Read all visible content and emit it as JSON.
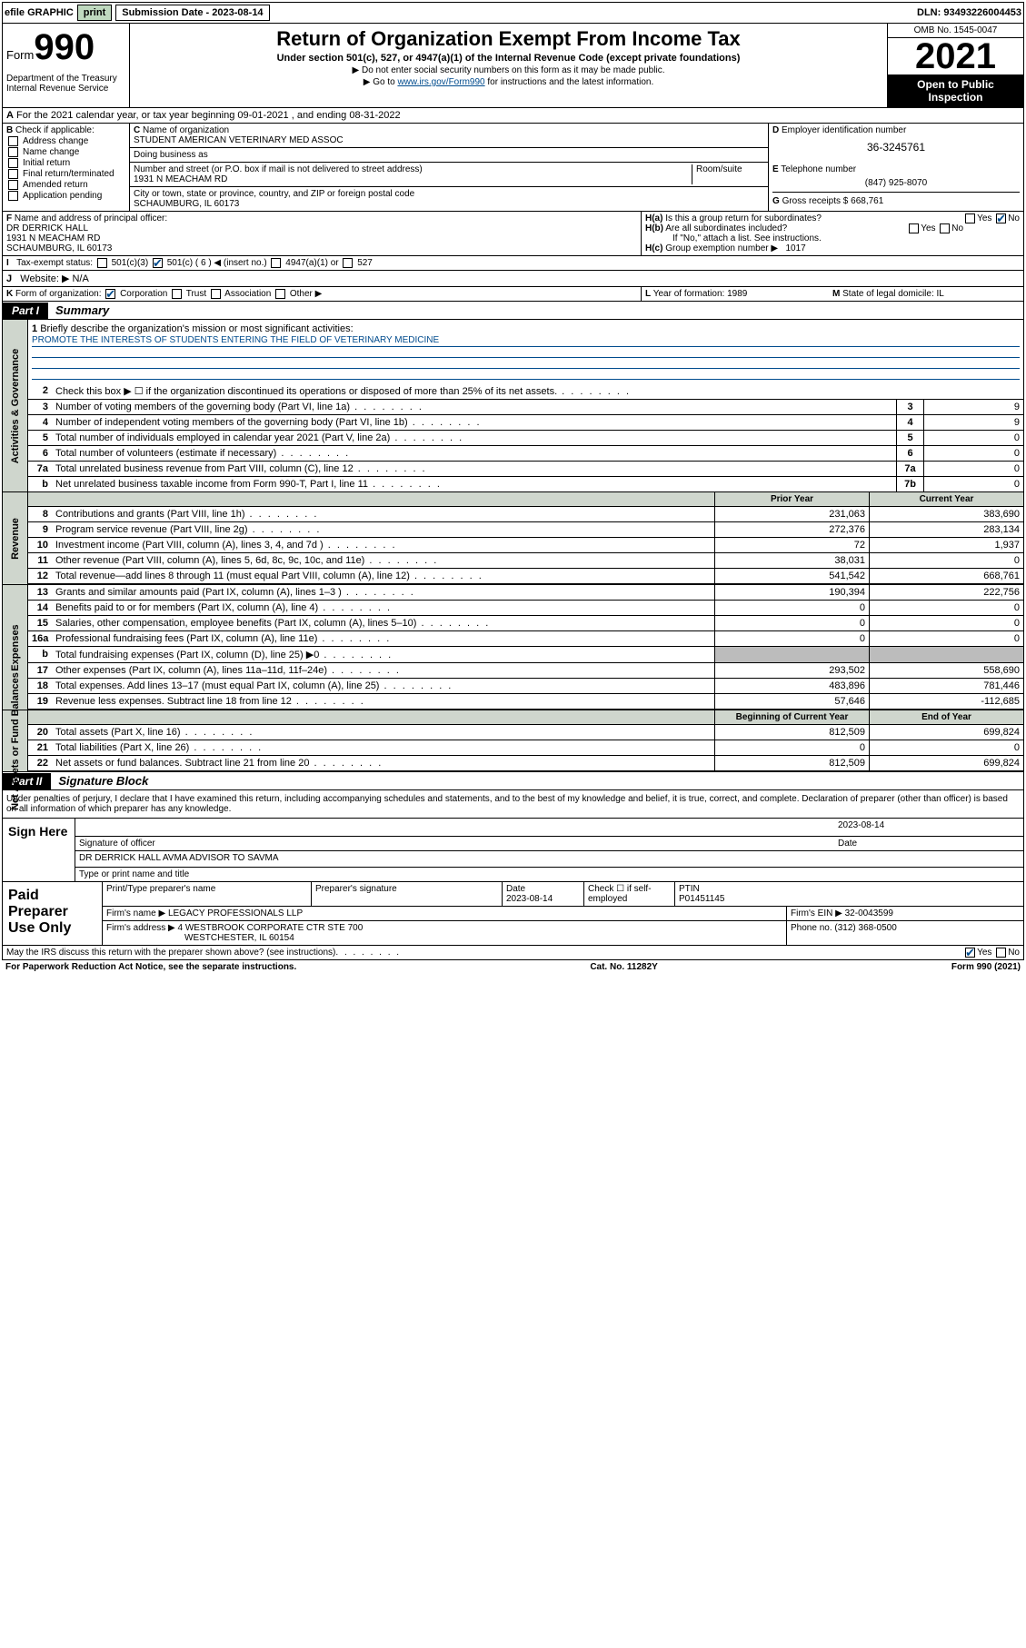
{
  "topbar": {
    "efile": "efile GRAPHIC",
    "print": "print",
    "subdate_label": "Submission Date - ",
    "subdate": "2023-08-14",
    "dln": "DLN: 93493226004453"
  },
  "header": {
    "form_label": "Form",
    "form_no": "990",
    "dept": "Department of the Treasury\nInternal Revenue Service",
    "title": "Return of Organization Exempt From Income Tax",
    "sub": "Under section 501(c), 527, or 4947(a)(1) of the Internal Revenue Code (except private foundations)",
    "note1": "▶ Do not enter social security numbers on this form as it may be made public.",
    "note2": "▶ Go to ",
    "note2_link": "www.irs.gov/Form990",
    "note2_tail": " for instructions and the latest information.",
    "omb": "OMB No. 1545-0047",
    "year": "2021",
    "inspect": "Open to Public Inspection"
  },
  "rowA": "For the 2021 calendar year, or tax year beginning 09-01-2021  , and ending 08-31-2022",
  "B": {
    "hdr": "Check if applicable:",
    "items": [
      "Address change",
      "Name change",
      "Initial return",
      "Final return/terminated",
      "Amended return",
      "Application pending"
    ]
  },
  "C": {
    "name_lbl": "Name of organization",
    "name": "STUDENT AMERICAN VETERINARY MED ASSOC",
    "dba_lbl": "Doing business as",
    "dba": "",
    "addr_lbl": "Number and street (or P.O. box if mail is not delivered to street address)",
    "room_lbl": "Room/suite",
    "addr": "1931 N MEACHAM RD",
    "city_lbl": "City or town, state or province, country, and ZIP or foreign postal code",
    "city": "SCHAUMBURG, IL  60173"
  },
  "D": {
    "lbl": "Employer identification number",
    "val": "36-3245761"
  },
  "E": {
    "lbl": "Telephone number",
    "val": "(847) 925-8070"
  },
  "G": {
    "lbl": "Gross receipts $",
    "val": "668,761"
  },
  "F": {
    "lbl": "Name and address of principal officer:",
    "name": "DR DERRICK HALL",
    "addr": "1931 N MEACHAM RD",
    "city": "SCHAUMBURG, IL  60173"
  },
  "H": {
    "a": "Is this a group return for subordinates?",
    "a_yes": "Yes",
    "a_no": "No",
    "b": "Are all subordinates included?",
    "b_note": "If \"No,\" attach a list. See instructions.",
    "c_lbl": "Group exemption number ▶",
    "c_val": "1017"
  },
  "I": {
    "lbl": "Tax-exempt status:",
    "opts": [
      "501(c)(3)",
      "501(c) ( 6 ) ◀ (insert no.)",
      "4947(a)(1) or",
      "527"
    ]
  },
  "J": {
    "lbl": "Website: ▶",
    "val": "N/A"
  },
  "K": {
    "lbl": "Form of organization:",
    "opts": [
      "Corporation",
      "Trust",
      "Association",
      "Other ▶"
    ]
  },
  "L": {
    "lbl": "Year of formation:",
    "val": "1989"
  },
  "M": {
    "lbl": "State of legal domicile:",
    "val": "IL"
  },
  "part1": {
    "tag": "Part I",
    "title": "Summary"
  },
  "briefly": {
    "num": "1",
    "text": "Briefly describe the organization's mission or most significant activities:",
    "mission": "PROMOTE THE INTERESTS OF STUDENTS ENTERING THE FIELD OF VETERINARY MEDICINE"
  },
  "gov_lines": [
    {
      "n": "2",
      "t": "Check this box ▶ ☐  if the organization discontinued its operations or disposed of more than 25% of its net assets.",
      "box": "",
      "v": ""
    },
    {
      "n": "3",
      "t": "Number of voting members of the governing body (Part VI, line 1a)",
      "box": "3",
      "v": "9"
    },
    {
      "n": "4",
      "t": "Number of independent voting members of the governing body (Part VI, line 1b)",
      "box": "4",
      "v": "9"
    },
    {
      "n": "5",
      "t": "Total number of individuals employed in calendar year 2021 (Part V, line 2a)",
      "box": "5",
      "v": "0"
    },
    {
      "n": "6",
      "t": "Total number of volunteers (estimate if necessary)",
      "box": "6",
      "v": "0"
    },
    {
      "n": "7a",
      "t": "Total unrelated business revenue from Part VIII, column (C), line 12",
      "box": "7a",
      "v": "0"
    },
    {
      "n": "b",
      "t": "Net unrelated business taxable income from Form 990-T, Part I, line 11",
      "box": "7b",
      "v": "0"
    }
  ],
  "sidelabels": {
    "gov": "Activities & Governance",
    "rev": "Revenue",
    "exp": "Expenses",
    "net": "Net Assets or Fund Balances"
  },
  "fin_hdr": {
    "prior": "Prior Year",
    "curr": "Current Year"
  },
  "rev_lines": [
    {
      "n": "8",
      "t": "Contributions and grants (Part VIII, line 1h)",
      "p": "231,063",
      "c": "383,690"
    },
    {
      "n": "9",
      "t": "Program service revenue (Part VIII, line 2g)",
      "p": "272,376",
      "c": "283,134"
    },
    {
      "n": "10",
      "t": "Investment income (Part VIII, column (A), lines 3, 4, and 7d )",
      "p": "72",
      "c": "1,937"
    },
    {
      "n": "11",
      "t": "Other revenue (Part VIII, column (A), lines 5, 6d, 8c, 9c, 10c, and 11e)",
      "p": "38,031",
      "c": "0"
    },
    {
      "n": "12",
      "t": "Total revenue—add lines 8 through 11 (must equal Part VIII, column (A), line 12)",
      "p": "541,542",
      "c": "668,761"
    }
  ],
  "exp_lines": [
    {
      "n": "13",
      "t": "Grants and similar amounts paid (Part IX, column (A), lines 1–3 )",
      "p": "190,394",
      "c": "222,756"
    },
    {
      "n": "14",
      "t": "Benefits paid to or for members (Part IX, column (A), line 4)",
      "p": "0",
      "c": "0"
    },
    {
      "n": "15",
      "t": "Salaries, other compensation, employee benefits (Part IX, column (A), lines 5–10)",
      "p": "0",
      "c": "0"
    },
    {
      "n": "16a",
      "t": "Professional fundraising fees (Part IX, column (A), line 11e)",
      "p": "0",
      "c": "0"
    },
    {
      "n": "b",
      "t": "Total fundraising expenses (Part IX, column (D), line 25) ▶0",
      "p": "",
      "c": "",
      "grey": true
    },
    {
      "n": "17",
      "t": "Other expenses (Part IX, column (A), lines 11a–11d, 11f–24e)",
      "p": "293,502",
      "c": "558,690"
    },
    {
      "n": "18",
      "t": "Total expenses. Add lines 13–17 (must equal Part IX, column (A), line 25)",
      "p": "483,896",
      "c": "781,446"
    },
    {
      "n": "19",
      "t": "Revenue less expenses. Subtract line 18 from line 12",
      "p": "57,646",
      "c": "-112,685"
    }
  ],
  "net_hdr": {
    "beg": "Beginning of Current Year",
    "end": "End of Year"
  },
  "net_lines": [
    {
      "n": "20",
      "t": "Total assets (Part X, line 16)",
      "p": "812,509",
      "c": "699,824"
    },
    {
      "n": "21",
      "t": "Total liabilities (Part X, line 26)",
      "p": "0",
      "c": "0"
    },
    {
      "n": "22",
      "t": "Net assets or fund balances. Subtract line 21 from line 20",
      "p": "812,509",
      "c": "699,824"
    }
  ],
  "part2": {
    "tag": "Part II",
    "title": "Signature Block"
  },
  "sig": {
    "decl": "Under penalties of perjury, I declare that I have examined this return, including accompanying schedules and statements, and to the best of my knowledge and belief, it is true, correct, and complete. Declaration of preparer (other than officer) is based on all information of which preparer has any knowledge.",
    "here": "Sign Here",
    "sigoff": "Signature of officer",
    "date": "2023-08-14",
    "date_lbl": "Date",
    "name": "DR DERRICK HALL AVMA ADVISOR TO SAVMA",
    "name_lbl": "Type or print name and title"
  },
  "paid": {
    "title": "Paid Preparer Use Only",
    "h1": "Print/Type preparer's name",
    "h2": "Preparer's signature",
    "h3": "Date",
    "h3v": "2023-08-14",
    "h4": "Check ☐ if self-employed",
    "h5": "PTIN",
    "h5v": "P01451145",
    "firm_lbl": "Firm's name   ▶",
    "firm": "LEGACY PROFESSIONALS LLP",
    "ein_lbl": "Firm's EIN ▶",
    "ein": "32-0043599",
    "addr_lbl": "Firm's address ▶",
    "addr": "4 WESTBROOK CORPORATE CTR STE 700",
    "addr2": "WESTCHESTER, IL  60154",
    "phone_lbl": "Phone no.",
    "phone": "(312) 368-0500"
  },
  "discuss": {
    "text": "May the IRS discuss this return with the preparer shown above? (see instructions)",
    "yes": "Yes",
    "no": "No"
  },
  "footer": {
    "left": "For Paperwork Reduction Act Notice, see the separate instructions.",
    "mid": "Cat. No. 11282Y",
    "right": "Form 990 (2021)"
  },
  "colors": {
    "link": "#004b8d",
    "grey": "#cfd6cd"
  }
}
